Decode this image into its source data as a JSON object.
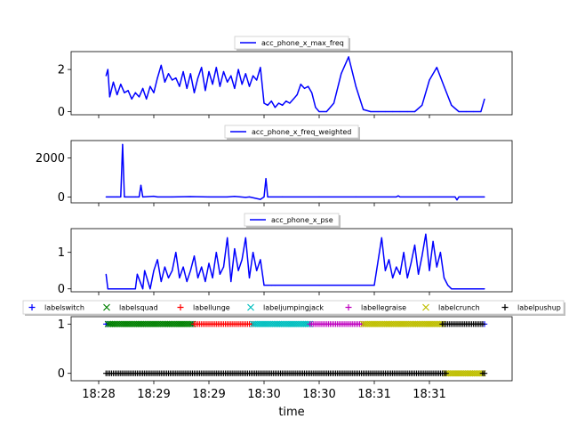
{
  "chart_data": [
    {
      "type": "line",
      "legend": "top-center",
      "x_domain": [
        "18:27:45",
        "18:31:45"
      ],
      "ylim": [
        -0.15,
        2.85
      ],
      "yticks": [
        "0",
        "2"
      ],
      "series": [
        {
          "name": "acc_phone_x_max_freq",
          "color": "#0000ff",
          "x": [
            "18:28:04",
            "18:28:05",
            "18:28:06",
            "18:28:08",
            "18:28:10",
            "18:28:12",
            "18:28:14",
            "18:28:16",
            "18:28:18",
            "18:28:20",
            "18:28:22",
            "18:28:24",
            "18:28:26",
            "18:28:28",
            "18:28:30",
            "18:28:32",
            "18:28:34",
            "18:28:36",
            "18:28:38",
            "18:28:40",
            "18:28:42",
            "18:28:44",
            "18:28:46",
            "18:28:48",
            "18:28:50",
            "18:28:52",
            "18:28:54",
            "18:28:56",
            "18:28:58",
            "18:29:00",
            "18:29:02",
            "18:29:04",
            "18:29:06",
            "18:29:08",
            "18:29:10",
            "18:29:12",
            "18:29:14",
            "18:29:16",
            "18:29:18",
            "18:29:20",
            "18:29:22",
            "18:29:24",
            "18:29:26",
            "18:29:28",
            "18:29:30",
            "18:29:32",
            "18:29:34",
            "18:29:36",
            "18:29:38",
            "18:29:40",
            "18:29:42",
            "18:29:44",
            "18:29:46",
            "18:29:48",
            "18:29:50",
            "18:29:52",
            "18:29:54",
            "18:29:56",
            "18:29:58",
            "18:30:00",
            "18:30:04",
            "18:30:08",
            "18:30:12",
            "18:30:16",
            "18:30:20",
            "18:30:24",
            "18:30:28",
            "18:30:32",
            "18:30:36",
            "18:30:40",
            "18:30:44",
            "18:30:48",
            "18:30:52",
            "18:30:56",
            "18:31:00",
            "18:31:04",
            "18:31:08",
            "18:31:12",
            "18:31:16",
            "18:31:20",
            "18:31:24",
            "18:31:28",
            "18:31:30"
          ],
          "y": [
            1.7,
            2.0,
            0.7,
            1.4,
            0.8,
            1.3,
            0.9,
            1.0,
            0.6,
            0.9,
            0.7,
            1.1,
            0.6,
            1.2,
            0.9,
            1.6,
            2.2,
            1.4,
            1.8,
            1.5,
            1.6,
            1.2,
            1.9,
            1.1,
            1.8,
            0.9,
            1.6,
            2.1,
            1.0,
            1.9,
            1.3,
            2.1,
            1.2,
            1.9,
            1.4,
            1.7,
            1.1,
            2.0,
            1.3,
            1.8,
            1.2,
            1.7,
            1.5,
            2.1,
            0.4,
            0.3,
            0.5,
            0.2,
            0.4,
            0.3,
            0.5,
            0.4,
            0.6,
            0.8,
            1.3,
            1.1,
            1.2,
            0.9,
            0.2,
            0.0,
            0.0,
            0.4,
            1.8,
            2.6,
            1.2,
            0.1,
            0.0,
            0.0,
            0.0,
            0.0,
            0.0,
            0.0,
            0.0,
            0.3,
            1.5,
            2.1,
            1.2,
            0.3,
            0.0,
            0.0,
            0.0,
            0.0,
            0.6
          ]
        }
      ]
    },
    {
      "type": "line",
      "legend": "top-center",
      "x_domain": [
        "18:27:45",
        "18:31:45"
      ],
      "ylim": [
        -300,
        2900
      ],
      "yticks": [
        "0",
        "2000"
      ],
      "series": [
        {
          "name": "acc_phone_x_freq_weighted",
          "color": "#0000ff",
          "x": [
            "18:28:04",
            "18:28:10",
            "18:28:12",
            "18:28:13",
            "18:28:14",
            "18:28:20",
            "18:28:22",
            "18:28:23",
            "18:28:24",
            "18:28:30",
            "18:28:32",
            "18:28:40",
            "18:28:50",
            "18:29:00",
            "18:29:10",
            "18:29:14",
            "18:29:20",
            "18:29:22",
            "18:29:28",
            "18:29:30",
            "18:29:31",
            "18:29:32",
            "18:29:40",
            "18:30:00",
            "18:30:20",
            "18:30:42",
            "18:30:43",
            "18:30:44",
            "18:31:00",
            "18:31:14",
            "18:31:15",
            "18:31:16",
            "18:31:30"
          ],
          "y": [
            0,
            0,
            0,
            2700,
            0,
            0,
            0,
            600,
            0,
            40,
            0,
            0,
            20,
            0,
            0,
            30,
            -20,
            0,
            -120,
            0,
            950,
            0,
            0,
            0,
            0,
            0,
            60,
            0,
            0,
            0,
            -150,
            0,
            0
          ]
        }
      ]
    },
    {
      "type": "line",
      "legend": "top-center",
      "x_domain": [
        "18:27:45",
        "18:31:45"
      ],
      "ylim": [
        -0.08,
        1.65
      ],
      "yticks": [
        "0",
        "1"
      ],
      "series": [
        {
          "name": "acc_phone_x_pse",
          "color": "#0000ff",
          "x": [
            "18:28:04",
            "18:28:05",
            "18:28:20",
            "18:28:21",
            "18:28:24",
            "18:28:25",
            "18:28:28",
            "18:28:30",
            "18:28:32",
            "18:28:34",
            "18:28:36",
            "18:28:38",
            "18:28:40",
            "18:28:42",
            "18:28:44",
            "18:28:46",
            "18:28:48",
            "18:28:50",
            "18:28:52",
            "18:28:54",
            "18:28:56",
            "18:28:58",
            "18:29:00",
            "18:29:02",
            "18:29:04",
            "18:29:06",
            "18:29:08",
            "18:29:10",
            "18:29:12",
            "18:29:14",
            "18:29:16",
            "18:29:18",
            "18:29:20",
            "18:29:22",
            "18:29:24",
            "18:29:26",
            "18:29:28",
            "18:29:30",
            "18:29:32",
            "18:29:34",
            "18:29:36",
            "18:30:00",
            "18:30:30",
            "18:30:34",
            "18:30:36",
            "18:30:38",
            "18:30:40",
            "18:30:42",
            "18:30:44",
            "18:30:46",
            "18:30:48",
            "18:30:50",
            "18:30:52",
            "18:30:54",
            "18:30:56",
            "18:30:58",
            "18:31:00",
            "18:31:02",
            "18:31:04",
            "18:31:06",
            "18:31:08",
            "18:31:10",
            "18:31:12",
            "18:31:30"
          ],
          "y": [
            0.4,
            0.0,
            0.0,
            0.4,
            0.0,
            0.5,
            0.0,
            0.5,
            0.8,
            0.2,
            0.6,
            0.3,
            0.5,
            1.0,
            0.3,
            0.6,
            0.2,
            0.5,
            0.9,
            0.3,
            0.6,
            0.2,
            0.7,
            0.3,
            1.0,
            0.4,
            0.6,
            1.4,
            0.2,
            1.1,
            0.5,
            0.8,
            1.4,
            0.3,
            1.0,
            0.5,
            0.8,
            0.1,
            0.1,
            0.1,
            0.1,
            0.1,
            0.1,
            1.4,
            0.5,
            0.8,
            0.3,
            0.6,
            0.4,
            1.0,
            0.3,
            0.7,
            1.2,
            0.4,
            0.9,
            1.5,
            0.5,
            1.3,
            0.6,
            1.0,
            0.3,
            0.1,
            0.0,
            0.0
          ]
        }
      ]
    },
    {
      "type": "scatter",
      "legend": "top-center",
      "x_domain": [
        "18:27:45",
        "18:31:45"
      ],
      "ylim": [
        -0.15,
        1.15
      ],
      "yticks": [
        "0",
        "1"
      ],
      "xticks": [
        "18:28",
        "18:29",
        "18:29",
        "18:30",
        "18:30",
        "18:31",
        "18:31"
      ],
      "xlabel": "time",
      "series": [
        {
          "name": "labelswitch",
          "marker": "+",
          "color": "#0000ff",
          "value": 1,
          "segments": [
            [
              "18:28:04",
              "18:28:05"
            ],
            [
              "18:28:51",
              "18:28:52"
            ],
            [
              "18:31:29",
              "18:31:30"
            ]
          ]
        },
        {
          "name": "labelsquad",
          "marker": "x",
          "color": "#008000",
          "value": 1,
          "segments": [
            [
              "18:28:05",
              "18:28:51"
            ]
          ]
        },
        {
          "name": "labellunge",
          "marker": "+",
          "color": "#ff0000",
          "value": 1,
          "segments": [
            [
              "18:28:52",
              "18:29:24"
            ]
          ]
        },
        {
          "name": "labeljumpingjack",
          "marker": "x",
          "color": "#00bfbf",
          "value": 1,
          "segments": [
            [
              "18:29:24",
              "18:29:55"
            ]
          ]
        },
        {
          "name": "labellegraise",
          "marker": "+",
          "color": "#bf00bf",
          "value": 1,
          "segments": [
            [
              "18:29:55",
              "18:30:24"
            ]
          ]
        },
        {
          "name": "labelcrunch",
          "marker": "x",
          "color": "#bfbf00",
          "value": 1,
          "segments": [
            [
              "18:30:24",
              "18:31:07"
            ]
          ]
        },
        {
          "name": "labelpushup",
          "marker": "+",
          "color": "#000000",
          "value": 1,
          "segments": [
            [
              "18:31:07",
              "18:31:29"
            ]
          ]
        },
        {
          "name": "labelcrunch",
          "marker": "x",
          "color": "#bfbf00",
          "value": 0,
          "segments": [
            [
              "18:31:09",
              "18:31:29"
            ]
          ]
        },
        {
          "name": "labelpushup",
          "marker": "+",
          "color": "#000000",
          "value": 0,
          "segments": [
            [
              "18:28:04",
              "18:31:09"
            ],
            [
              "18:31:29",
              "18:31:30"
            ]
          ]
        }
      ]
    }
  ]
}
